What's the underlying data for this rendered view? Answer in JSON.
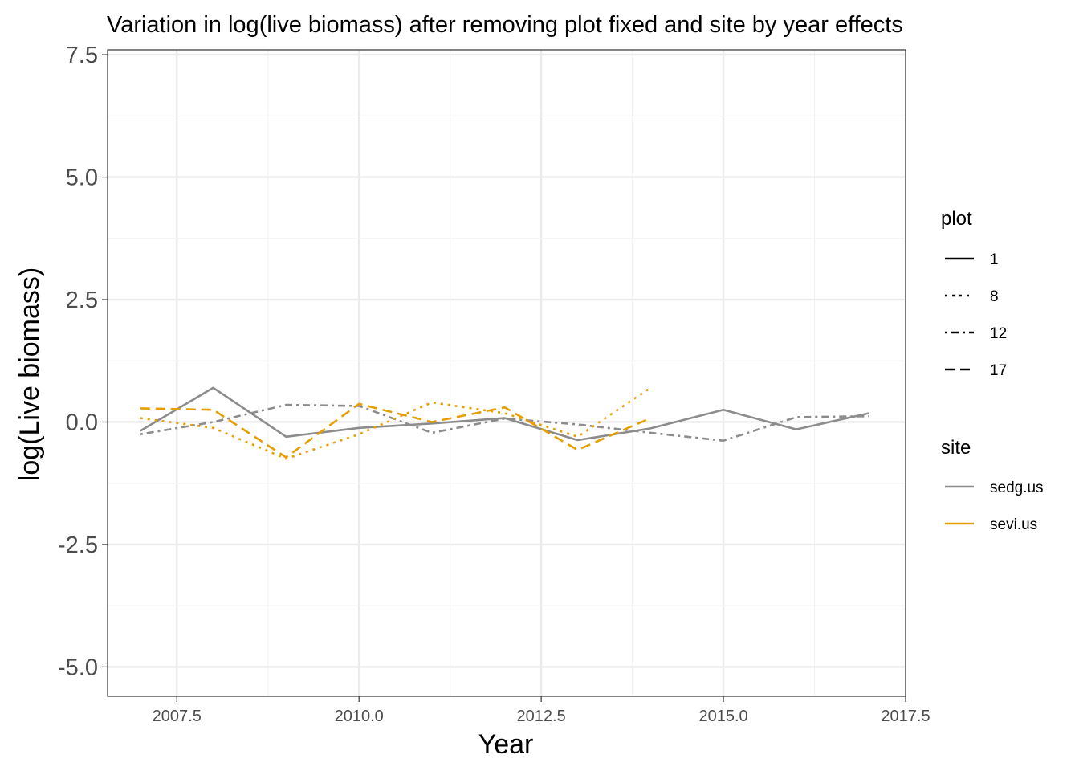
{
  "chart_data": {
    "type": "line",
    "title": "Variation in log(live biomass) after removing plot fixed and site by year effects",
    "xlabel": "Year",
    "ylabel": "log(Live biomass)",
    "xlim": [
      2006.55,
      2017.5
    ],
    "ylim": [
      -5.6,
      7.6
    ],
    "x_ticks": [
      "2007.5",
      "2010.0",
      "2012.5",
      "2015.0",
      "2017.5"
    ],
    "y_ticks": [
      "-5.0",
      "-2.5",
      "0.0",
      "2.5",
      "5.0",
      "7.5"
    ],
    "grid": true,
    "legend_position": "right",
    "site_colors": {
      "sedg.us": "#8c8c8c",
      "sevi.us": "#e69f00"
    },
    "series": [
      {
        "site": "sedg.us",
        "plot": "1",
        "x": [
          2007,
          2008,
          2009,
          2010,
          2011,
          2012,
          2013,
          2014,
          2015,
          2016,
          2017
        ],
        "y": [
          -0.18,
          0.7,
          -0.3,
          -0.12,
          -0.03,
          0.08,
          -0.37,
          -0.13,
          0.25,
          -0.15,
          0.18
        ]
      },
      {
        "site": "sedg.us",
        "plot": "12",
        "x": [
          2007,
          2008,
          2009,
          2010,
          2011,
          2012,
          2013,
          2014,
          2015,
          2016,
          2017
        ],
        "y": [
          -0.25,
          0.0,
          0.35,
          0.33,
          -0.22,
          0.07,
          -0.05,
          -0.22,
          -0.38,
          0.1,
          0.12
        ]
      },
      {
        "site": "sevi.us",
        "plot": "8",
        "x": [
          2007,
          2008,
          2009,
          2010,
          2011,
          2012,
          2013,
          2014
        ],
        "y": [
          0.08,
          -0.12,
          -0.75,
          -0.25,
          0.4,
          0.18,
          -0.3,
          0.7
        ]
      },
      {
        "site": "sevi.us",
        "plot": "17",
        "x": [
          2007,
          2008,
          2009,
          2010,
          2011,
          2012,
          2013,
          2014
        ],
        "y": [
          0.28,
          0.25,
          -0.72,
          0.37,
          0.0,
          0.3,
          -0.57,
          0.08
        ]
      }
    ]
  },
  "legend": {
    "plot_title": "plot",
    "plot_items": [
      {
        "label": "1",
        "dash": "solid"
      },
      {
        "label": "8",
        "dash": "dotted"
      },
      {
        "label": "12",
        "dash": "dotdash"
      },
      {
        "label": "17",
        "dash": "dashed"
      }
    ],
    "site_title": "site",
    "site_items": [
      {
        "label": "sedg.us"
      },
      {
        "label": "sevi.us"
      }
    ]
  }
}
